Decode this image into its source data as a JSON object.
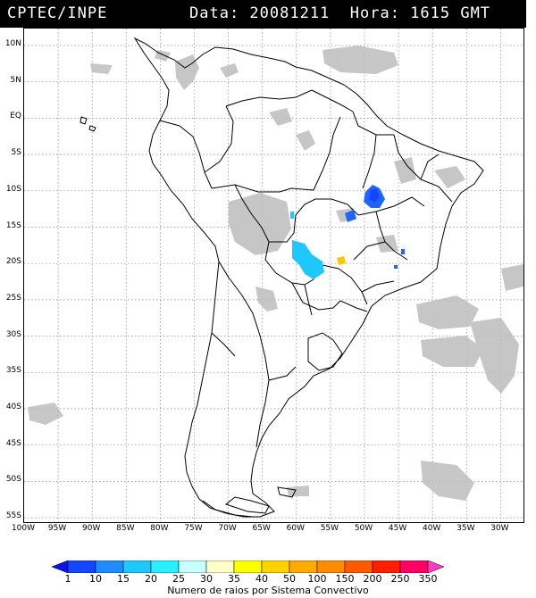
{
  "header": {
    "source": "CPTEC/INPE",
    "info": "Data: 20081211  Hora: 1615 GMT"
  },
  "lat_labels": [
    "10N",
    "5N",
    "EQ",
    "5S",
    "10S",
    "15S",
    "20S",
    "25S",
    "30S",
    "35S",
    "40S",
    "45S",
    "50S",
    "55S"
  ],
  "lon_labels": [
    "100W",
    "95W",
    "90W",
    "85W",
    "80W",
    "75W",
    "70W",
    "65W",
    "60W",
    "55W",
    "50W",
    "45W",
    "40W",
    "35W",
    "30W"
  ],
  "colorbar": {
    "labels": [
      "1",
      "10",
      "15",
      "20",
      "25",
      "30",
      "35",
      "40",
      "50",
      "100",
      "150",
      "200",
      "250",
      "350"
    ],
    "colors": [
      "#0a14e6",
      "#1446ff",
      "#1e8cff",
      "#1ec8ff",
      "#28f0ff",
      "#c8ffff",
      "#ffffc8",
      "#ffff00",
      "#ffd200",
      "#ffaa00",
      "#ff8c00",
      "#ff5a00",
      "#ff1e00",
      "#ff0064",
      "#ff3cc8"
    ],
    "title": "Numero de raios por Sistema Convectivo"
  }
}
